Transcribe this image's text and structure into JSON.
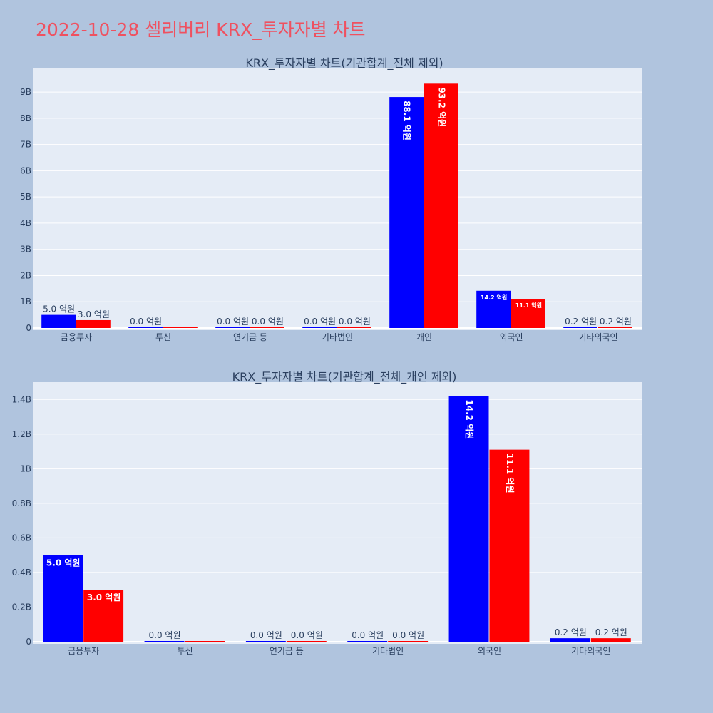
{
  "page": {
    "title": "2022-10-28 셀리버리 KRX_투자자별 차트"
  },
  "colors": {
    "buy": "#0000ff",
    "sell": "#ff0000",
    "background": "#b0c4de",
    "plot_background": "#e5ecf6",
    "title": "#ef5160"
  },
  "chart_data": [
    {
      "type": "bar",
      "title": "KRX_투자자별 차트(기관합계_전체 제외)",
      "categories": [
        "금융투자",
        "투신",
        "연기금 등",
        "기타법인",
        "개인",
        "외국인",
        "기타외국인"
      ],
      "series": [
        {
          "color": "#0000ff",
          "values": [
            500000000,
            0,
            0,
            0,
            8810000000,
            1420000000,
            20000000
          ],
          "labels": [
            "5.0 억원",
            "0.0 억원",
            "0.0 억원",
            "0.0 억원",
            "88.1 억원",
            "14.2 억원",
            "0.2 억원"
          ]
        },
        {
          "color": "#ff0000",
          "values": [
            300000000,
            0,
            0,
            0,
            9320000000,
            1110000000,
            20000000
          ],
          "labels": [
            "3.0 억원",
            "",
            "0.0 억원",
            "0.0 억원",
            "93.2 억원",
            "11.1 억원",
            "0.2 억원"
          ]
        }
      ],
      "ylim": [
        0,
        9900000000
      ],
      "yticks": [
        0,
        1000000000,
        2000000000,
        3000000000,
        4000000000,
        5000000000,
        6000000000,
        7000000000,
        8000000000,
        9000000000
      ],
      "ytick_labels": [
        "0",
        "1B",
        "2B",
        "3B",
        "4B",
        "5B",
        "6B",
        "7B",
        "8B",
        "9B"
      ],
      "grid": true,
      "legend": "none"
    },
    {
      "type": "bar",
      "title": "KRX_투자자별 차트(기관합계_전체_개인 제외)",
      "categories": [
        "금융투자",
        "투신",
        "연기금 등",
        "기타법인",
        "외국인",
        "기타외국인"
      ],
      "series": [
        {
          "color": "#0000ff",
          "values": [
            500000000,
            0,
            0,
            0,
            1420000000,
            20000000
          ],
          "labels": [
            "5.0 억원",
            "0.0 억원",
            "0.0 억원",
            "0.0 억원",
            "14.2 억원",
            "0.2 억원"
          ]
        },
        {
          "color": "#ff0000",
          "values": [
            300000000,
            0,
            0,
            0,
            1110000000,
            20000000
          ],
          "labels": [
            "3.0 억원",
            "",
            "0.0 억원",
            "0.0 억원",
            "11.1 억원",
            "0.2 억원"
          ]
        }
      ],
      "ylim": [
        0,
        1500000000
      ],
      "yticks": [
        0,
        200000000,
        400000000,
        600000000,
        800000000,
        1000000000,
        1200000000,
        1400000000
      ],
      "ytick_labels": [
        "0",
        "0.2B",
        "0.4B",
        "0.6B",
        "0.8B",
        "1B",
        "1.2B",
        "1.4B"
      ],
      "grid": true,
      "legend": "none"
    }
  ]
}
